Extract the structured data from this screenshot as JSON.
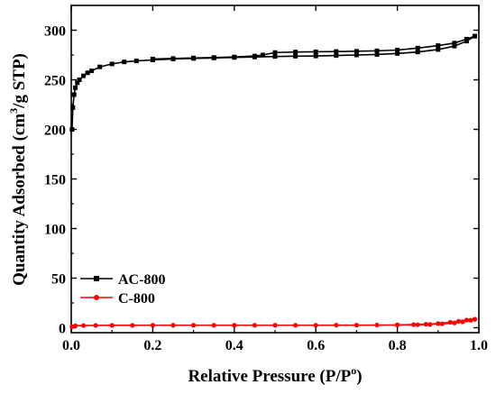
{
  "chart_data": {
    "type": "line",
    "xlabel": "Relative Pressure (P/P",
    "xlabel_sup": "o",
    "xlabel_end": ")",
    "ylabel": "Quantity Adsorbed (cm",
    "ylabel_sup": "3",
    "ylabel_end": "/g STP)",
    "xlim": [
      0.0,
      1.0
    ],
    "ylim": [
      -5,
      325
    ],
    "xticks": [
      0.0,
      0.2,
      0.4,
      0.6,
      0.8,
      1.0
    ],
    "xtick_labels": [
      "0.0",
      "0.2",
      "0.4",
      "0.6",
      "0.8",
      "1.0"
    ],
    "yticks": [
      0,
      50,
      100,
      150,
      200,
      250,
      300
    ],
    "ytick_labels": [
      "0",
      "50",
      "100",
      "150",
      "200",
      "250",
      "300"
    ],
    "legend_position": "bottom-left",
    "series": [
      {
        "name": "AC-800",
        "color": "#000000",
        "marker": "square",
        "adsorption": [
          [
            0.002,
            200
          ],
          [
            0.004,
            222
          ],
          [
            0.007,
            235
          ],
          [
            0.01,
            242
          ],
          [
            0.015,
            247
          ],
          [
            0.02,
            250
          ],
          [
            0.03,
            254
          ],
          [
            0.04,
            257
          ],
          [
            0.05,
            259
          ],
          [
            0.07,
            263
          ],
          [
            0.1,
            266
          ],
          [
            0.13,
            268
          ],
          [
            0.16,
            269
          ],
          [
            0.2,
            270
          ],
          [
            0.25,
            271
          ],
          [
            0.3,
            271.5
          ],
          [
            0.35,
            272
          ],
          [
            0.4,
            272.5
          ],
          [
            0.45,
            273
          ],
          [
            0.5,
            273.5
          ],
          [
            0.55,
            273.8
          ],
          [
            0.6,
            274
          ],
          [
            0.65,
            274.5
          ],
          [
            0.7,
            275
          ],
          [
            0.75,
            275.5
          ],
          [
            0.8,
            276.5
          ],
          [
            0.85,
            278
          ],
          [
            0.9,
            280.5
          ],
          [
            0.94,
            284
          ],
          [
            0.97,
            289
          ],
          [
            0.99,
            294
          ]
        ],
        "desorption": [
          [
            0.99,
            294
          ],
          [
            0.97,
            291
          ],
          [
            0.94,
            287
          ],
          [
            0.9,
            284.5
          ],
          [
            0.85,
            282
          ],
          [
            0.8,
            280
          ],
          [
            0.75,
            279.2
          ],
          [
            0.7,
            278.8
          ],
          [
            0.65,
            278.5
          ],
          [
            0.6,
            278.2
          ],
          [
            0.55,
            278
          ],
          [
            0.5,
            277.5
          ],
          [
            0.47,
            275
          ],
          [
            0.45,
            274
          ],
          [
            0.4,
            273
          ],
          [
            0.35,
            272.5
          ],
          [
            0.3,
            272
          ],
          [
            0.25,
            271.5
          ],
          [
            0.2,
            271
          ]
        ]
      },
      {
        "name": "C-800",
        "color": "#ff0000",
        "marker": "circle",
        "adsorption": [
          [
            0.002,
            1
          ],
          [
            0.01,
            2
          ],
          [
            0.03,
            2.2
          ],
          [
            0.06,
            2.3
          ],
          [
            0.1,
            2.4
          ],
          [
            0.15,
            2.4
          ],
          [
            0.2,
            2.5
          ],
          [
            0.25,
            2.5
          ],
          [
            0.3,
            2.5
          ],
          [
            0.35,
            2.5
          ],
          [
            0.4,
            2.5
          ],
          [
            0.45,
            2.5
          ],
          [
            0.5,
            2.5
          ],
          [
            0.55,
            2.5
          ],
          [
            0.6,
            2.5
          ],
          [
            0.65,
            2.6
          ],
          [
            0.7,
            2.6
          ],
          [
            0.75,
            2.7
          ],
          [
            0.8,
            2.8
          ],
          [
            0.85,
            3.0
          ],
          [
            0.88,
            3.3
          ],
          [
            0.91,
            3.9
          ],
          [
            0.94,
            4.8
          ],
          [
            0.96,
            6.0
          ],
          [
            0.98,
            7.5
          ],
          [
            0.99,
            8.5
          ]
        ],
        "desorption": [
          [
            0.99,
            8.5
          ],
          [
            0.97,
            7.8
          ],
          [
            0.95,
            6.5
          ],
          [
            0.93,
            5.5
          ],
          [
            0.9,
            4.2
          ],
          [
            0.87,
            3.5
          ],
          [
            0.84,
            3.1
          ],
          [
            0.8,
            2.9
          ]
        ]
      }
    ]
  }
}
